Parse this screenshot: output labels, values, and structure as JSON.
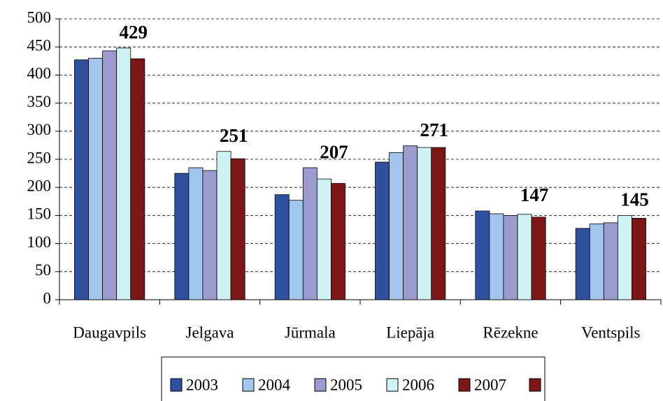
{
  "chart_data": {
    "type": "bar",
    "categories": [
      "Daugavpils",
      "Jelgava",
      "Jūrmala",
      "Liepāja",
      "Rēzekne",
      "Ventspils"
    ],
    "series": [
      {
        "name": "2003",
        "color": "#2f4f9f",
        "values": [
          427,
          225,
          187,
          245,
          158,
          127
        ]
      },
      {
        "name": "2004",
        "color": "#a3c6ee",
        "values": [
          430,
          235,
          177,
          262,
          153,
          135
        ]
      },
      {
        "name": "2005",
        "color": "#9b9bd0",
        "values": [
          443,
          230,
          235,
          274,
          150,
          137
        ]
      },
      {
        "name": "2006",
        "color": "#cff2f2",
        "values": [
          448,
          264,
          215,
          271,
          152,
          150
        ]
      },
      {
        "name": "2007",
        "color": "#7d1717",
        "values": [
          429,
          251,
          207,
          271,
          147,
          145
        ],
        "labels": true
      }
    ],
    "ylim": [
      0,
      500
    ],
    "yticks": [
      0,
      50,
      100,
      150,
      200,
      250,
      300,
      350,
      400,
      450,
      500
    ],
    "grid": true,
    "legend": "bottom"
  }
}
